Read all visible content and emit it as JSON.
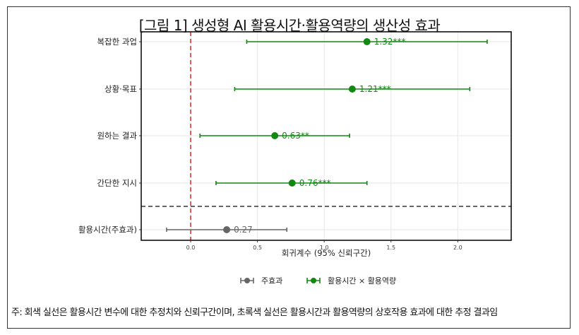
{
  "figure": {
    "title": "[그림 1] 생성형 AI 활용시간·활용역량의 생산성 효과",
    "note": "주: 회색 실선은 활용시간 변수에 대한 추정치와 신뢰구간이며, 초록색 실선은 활용시간과 활용역량의 상호작용 효과에 대한 추정 결과임"
  },
  "chart_data": {
    "type": "forest",
    "xlabel": "회귀계수 (95% 신뢰구간)",
    "ylabel": "",
    "xlim": [
      -0.37,
      2.4
    ],
    "xticks": [
      0.0,
      0.5,
      1.0,
      1.5,
      2.0
    ],
    "xtick_labels": [
      "0.0",
      "0.5",
      "1.0",
      "1.5",
      "2.0"
    ],
    "reference_line": 0,
    "grid": true,
    "legend": {
      "position": "bottom",
      "entries": [
        {
          "label": "주효과",
          "color": "#666666"
        },
        {
          "label": "활용시간 × 활용역량",
          "color": "#118811"
        }
      ]
    },
    "colors": {
      "main": "#666666",
      "interaction": "#118811",
      "reference": "#e03030",
      "divider": "#333333"
    },
    "rows": [
      {
        "label": "복잡한 과업",
        "estimate": 1.32,
        "ci": [
          0.42,
          2.22
        ],
        "annotation": "1.32***",
        "group": "interaction"
      },
      {
        "label": "상황·목표",
        "estimate": 1.21,
        "ci": [
          0.33,
          2.09
        ],
        "annotation": "1.21***",
        "group": "interaction"
      },
      {
        "label": "원하는 결과",
        "estimate": 0.63,
        "ci": [
          0.07,
          1.19
        ],
        "annotation": "0.63**",
        "group": "interaction"
      },
      {
        "label": "간단한 지시",
        "estimate": 0.76,
        "ci": [
          0.19,
          1.32
        ],
        "annotation": "0.76***",
        "group": "interaction"
      },
      {
        "label": "활용시간(주효과)",
        "estimate": 0.27,
        "ci": [
          -0.18,
          0.72
        ],
        "annotation": "0.27",
        "group": "main"
      }
    ]
  }
}
